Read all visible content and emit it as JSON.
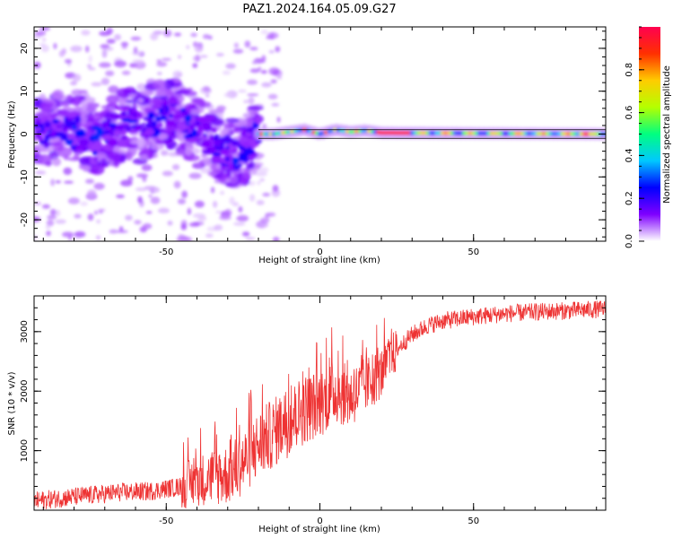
{
  "figure": {
    "title": "PAZ1.2024.164.05.09.G27"
  },
  "chart_data": [
    {
      "type": "heatmap",
      "title": "PAZ1.2024.164.05.09.G27",
      "xlabel": "Height of straight line (km)",
      "ylabel": "Frequency (Hz)",
      "xlim": [
        -93,
        93
      ],
      "ylim": [
        -25,
        25
      ],
      "xticks": [
        -50,
        0,
        50
      ],
      "yticks": [
        -20,
        -10,
        0,
        10,
        20
      ],
      "grid": false,
      "colorbar": {
        "label": "Normalized spectral amplitude",
        "range": [
          0,
          1
        ],
        "ticks": [
          0.0,
          0.2,
          0.4,
          0.6,
          0.8
        ],
        "colormap": [
          "#ffffff",
          "#7f00ff",
          "#0000ff",
          "#00c8ff",
          "#00ff80",
          "#b4ff00",
          "#ffcc00",
          "#ff3000",
          "#ff0050"
        ]
      },
      "centerline": [
        [
          -93,
          0
        ],
        [
          -88,
          1
        ],
        [
          -83,
          2
        ],
        [
          -78,
          0
        ],
        [
          -73,
          -1
        ],
        [
          -68,
          0
        ],
        [
          -63,
          3
        ],
        [
          -58,
          1
        ],
        [
          -53,
          4
        ],
        [
          -48,
          5
        ],
        [
          -43,
          2
        ],
        [
          -38,
          0
        ],
        [
          -33,
          -3
        ],
        [
          -28,
          -5
        ],
        [
          -24,
          -3
        ],
        [
          -20,
          0
        ],
        [
          -15,
          0
        ],
        [
          -10,
          0.5
        ],
        [
          -5,
          1
        ],
        [
          0,
          0
        ],
        [
          5,
          1
        ],
        [
          10,
          0.5
        ],
        [
          15,
          0.8
        ],
        [
          20,
          0.3
        ],
        [
          93,
          0
        ]
      ],
      "annotation_lines": [
        {
          "x": [
            -20,
            93
          ],
          "y": 1,
          "color": "#000000"
        },
        {
          "x": [
            -20,
            93
          ],
          "y": -1,
          "color": "#000000"
        }
      ]
    },
    {
      "type": "line",
      "xlabel": "Height of straight line (km)",
      "ylabel": "SNR (10 * v/v)",
      "xlim": [
        -93,
        93
      ],
      "ylim": [
        0,
        3600
      ],
      "xticks": [
        -50,
        0,
        50
      ],
      "yticks": [
        1000,
        2000,
        3000
      ],
      "grid": false,
      "series": [
        {
          "color": "#ee3333",
          "x": [
            -93,
            -85,
            -75,
            -65,
            -55,
            -45,
            -40,
            -35,
            -30,
            -25,
            -20,
            -15,
            -10,
            -5,
            0,
            5,
            10,
            15,
            20,
            25,
            30,
            35,
            40,
            50,
            60,
            70,
            80,
            93
          ],
          "y": [
            150,
            200,
            250,
            300,
            320,
            400,
            500,
            550,
            600,
            800,
            1100,
            1300,
            1500,
            1700,
            1800,
            2000,
            1900,
            2100,
            2300,
            2700,
            2950,
            3100,
            3180,
            3250,
            3300,
            3330,
            3350,
            3380
          ]
        }
      ]
    }
  ]
}
